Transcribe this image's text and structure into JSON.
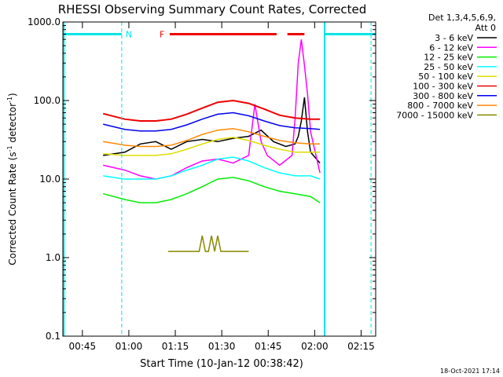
{
  "chart_data": {
    "type": "line",
    "title": "RHESSI Observing Summary Count Rates, Corrected",
    "xlabel": "Start Time (10-Jan-12 00:38:42)",
    "ylabel": "Corrected Count Rate (s",
    "ylabel_sup": "-1",
    "ylabel_mid": " detector",
    "ylabel_sup2": "-1",
    "ylabel_end": ")",
    "yscale": "log",
    "ylim": [
      0.1,
      1000
    ],
    "y_ticks": [
      0.1,
      1,
      10,
      100,
      1000
    ],
    "y_tick_labels": [
      "0.1",
      "1.0",
      "10.0",
      "100.0",
      "1000.0"
    ],
    "xlim_min": [
      0,
      101
    ],
    "x_ticks_min": [
      6.3,
      21.3,
      36.3,
      51.3,
      66.3,
      81.3,
      96.3
    ],
    "x_tick_labels": [
      "00:45",
      "01:00",
      "01:15",
      "01:30",
      "01:45",
      "02:00",
      "02:15"
    ],
    "detectors": "Det 1,3,4,5,6,9,",
    "attenuator": "Att 0",
    "footer_date": "18-Oct-2021 17:14",
    "annotations": {
      "night_label": "N",
      "night_intervals_min": [
        [
          0,
          19
        ],
        [
          84.5,
          101
        ]
      ],
      "flare_label": "F",
      "flare_intervals_min": [
        [
          34.5,
          69
        ],
        [
          72.5,
          78
        ]
      ],
      "saa_markers_min": [
        0.3,
        19,
        84.5,
        99.5
      ],
      "flag_level": 700,
      "night_color": "#00e5e5",
      "flare_color": "#ee0000"
    },
    "series": [
      {
        "name": "3 - 6 keV",
        "color": "#000000",
        "x_min": [
          13,
          20,
          25,
          30,
          35,
          40,
          45,
          50,
          55,
          60,
          64,
          68,
          72,
          75,
          76,
          77,
          78,
          79,
          80,
          83
        ],
        "values": [
          20,
          22,
          28,
          30,
          24,
          30,
          32,
          30,
          33,
          35,
          42,
          30,
          26,
          28,
          35,
          55,
          110,
          40,
          22,
          16
        ]
      },
      {
        "name": "6 - 12 keV",
        "color": "#ff00ff",
        "x_min": [
          13,
          20,
          25,
          30,
          35,
          40,
          45,
          50,
          55,
          60,
          62,
          64,
          66,
          70,
          74,
          75,
          76,
          77,
          78,
          79,
          80,
          83
        ],
        "values": [
          15,
          13,
          11,
          10,
          11,
          14,
          17,
          18,
          16,
          20,
          90,
          30,
          20,
          15,
          20,
          60,
          300,
          600,
          280,
          120,
          40,
          12
        ]
      },
      {
        "name": "12 - 25 keV",
        "color": "#00ee00",
        "x_min": [
          13,
          20,
          25,
          30,
          35,
          40,
          45,
          50,
          55,
          60,
          65,
          70,
          75,
          80,
          83
        ],
        "values": [
          6.5,
          5.5,
          5.0,
          5.0,
          5.5,
          6.5,
          8.0,
          10.0,
          10.5,
          9.5,
          8.0,
          7.0,
          6.5,
          6.0,
          5.0
        ]
      },
      {
        "name": "25 - 50 keV",
        "color": "#00ffff",
        "x_min": [
          13,
          20,
          25,
          30,
          35,
          40,
          45,
          50,
          55,
          60,
          65,
          70,
          75,
          80,
          83
        ],
        "values": [
          11,
          10,
          10,
          10,
          11,
          13,
          15,
          18,
          19,
          17,
          14,
          12,
          11,
          11,
          10
        ]
      },
      {
        "name": "50 - 100 keV",
        "color": "#dddd00",
        "x_min": [
          13,
          20,
          25,
          30,
          35,
          40,
          45,
          50,
          55,
          60,
          65,
          70,
          75,
          80,
          83
        ],
        "values": [
          21,
          20,
          20,
          20,
          21,
          24,
          28,
          32,
          34,
          31,
          27,
          24,
          22,
          22,
          22
        ]
      },
      {
        "name": "100 - 300 keV",
        "color": "#ee0000",
        "x_min": [
          13,
          20,
          25,
          30,
          35,
          40,
          45,
          50,
          55,
          60,
          65,
          70,
          75,
          80,
          83
        ],
        "values": [
          68,
          58,
          55,
          55,
          58,
          67,
          80,
          95,
          100,
          92,
          78,
          65,
          60,
          58,
          58
        ]
      },
      {
        "name": "300 - 800 keV",
        "color": "#0000ee",
        "x_min": [
          13,
          20,
          25,
          30,
          35,
          40,
          45,
          50,
          55,
          60,
          65,
          70,
          75,
          80,
          83
        ],
        "values": [
          50,
          43,
          41,
          41,
          43,
          49,
          58,
          67,
          70,
          64,
          55,
          48,
          45,
          44,
          43
        ]
      },
      {
        "name": "800 - 7000 keV",
        "color": "#ff8800",
        "x_min": [
          13,
          20,
          25,
          30,
          35,
          40,
          45,
          50,
          55,
          60,
          65,
          70,
          75,
          80,
          83
        ],
        "values": [
          30,
          27,
          26,
          26,
          27,
          31,
          37,
          42,
          44,
          40,
          35,
          31,
          29,
          28,
          28
        ]
      },
      {
        "name": "7000 - 15000 keV",
        "color": "#888800",
        "x_min": [
          34,
          44,
          45,
          46,
          47,
          48,
          49,
          50,
          51,
          52,
          60
        ],
        "values": [
          1.2,
          1.2,
          1.9,
          1.2,
          1.2,
          1.9,
          1.2,
          1.9,
          1.2,
          1.2,
          1.2
        ]
      }
    ]
  }
}
